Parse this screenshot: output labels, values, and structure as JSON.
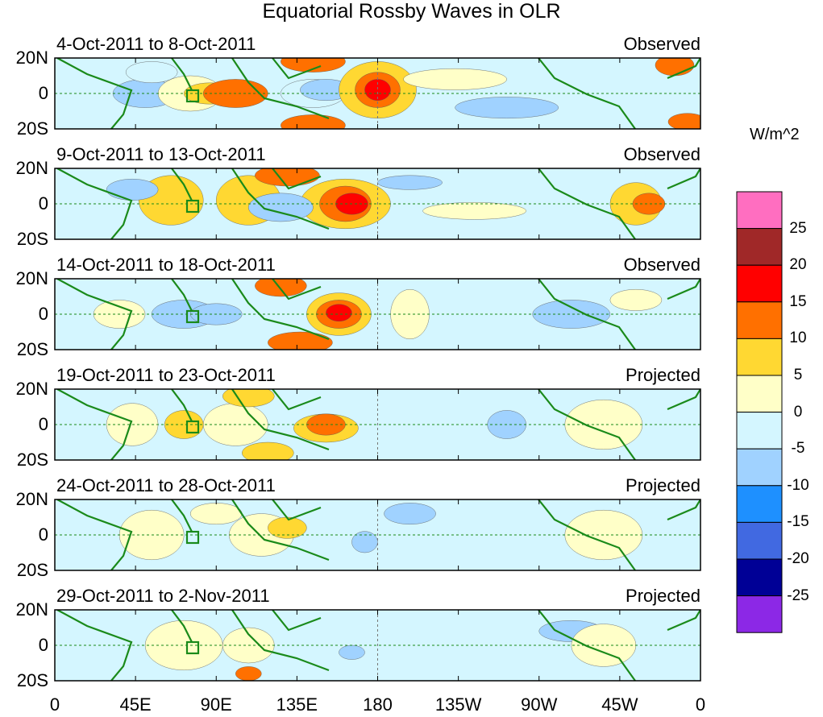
{
  "chart_data": {
    "type": "heatmap",
    "title": "Equatorial Rossby Waves in OLR",
    "units": "W/m^2",
    "x_ticks": [
      "0",
      "45E",
      "90E",
      "135E",
      "180",
      "135W",
      "90W",
      "45W",
      "0"
    ],
    "y_ticks": [
      "20N",
      "0",
      "20S"
    ],
    "panels": [
      {
        "period": "4-Oct-2011 to 8-Oct-2011",
        "kind": "Observed"
      },
      {
        "period": "9-Oct-2011 to 13-Oct-2011",
        "kind": "Observed"
      },
      {
        "period": "14-Oct-2011 to 18-Oct-2011",
        "kind": "Observed"
      },
      {
        "period": "19-Oct-2011 to 23-Oct-2011",
        "kind": "Projected"
      },
      {
        "period": "24-Oct-2011 to 28-Oct-2011",
        "kind": "Projected"
      },
      {
        "period": "29-Oct-2011 to 2-Nov-2011",
        "kind": "Projected"
      }
    ],
    "colorbar": {
      "labels": [
        "25",
        "20",
        "15",
        "10",
        "5",
        "0",
        "-5",
        "-10",
        "-15",
        "-20",
        "-25"
      ],
      "colors": [
        "#ff6ec0",
        "#a02828",
        "#ff0000",
        "#ff7000",
        "#ffd832",
        "#ffffc8",
        "#d4f6ff",
        "#a0d2ff",
        "#1e90ff",
        "#4169e1",
        "#000096",
        "#8c28e6"
      ]
    }
  }
}
